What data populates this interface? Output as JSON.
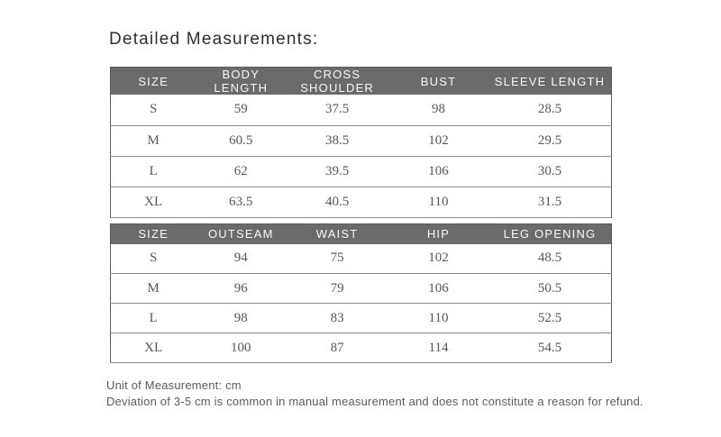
{
  "title": "Detailed Measurements:",
  "tables": [
    {
      "name": "top-garment-measurements",
      "columns": [
        "SIZE",
        "BODY LENGTH",
        "CROSS SHOULDER",
        "BUST",
        "SLEEVE LENGTH"
      ],
      "rows": [
        [
          "S",
          "59",
          "37.5",
          "98",
          "28.5"
        ],
        [
          "M",
          "60.5",
          "38.5",
          "102",
          "29.5"
        ],
        [
          "L",
          "62",
          "39.5",
          "106",
          "30.5"
        ],
        [
          "XL",
          "63.5",
          "40.5",
          "110",
          "31.5"
        ]
      ]
    },
    {
      "name": "bottom-garment-measurements",
      "columns": [
        "SIZE",
        "OUTSEAM",
        "WAIST",
        "HIP",
        "LEG OPENING"
      ],
      "rows": [
        [
          "S",
          "94",
          "75",
          "102",
          "48.5"
        ],
        [
          "M",
          "96",
          "79",
          "106",
          "50.5"
        ],
        [
          "L",
          "98",
          "83",
          "110",
          "52.5"
        ],
        [
          "XL",
          "100",
          "87",
          "114",
          "54.5"
        ]
      ]
    }
  ],
  "footnotes": [
    "Unit of Measurement: cm",
    "Deviation of 3-5 cm is common in manual measurement and does not constitute a reason for refund."
  ],
  "colors": {
    "page_bg": "#ffffff",
    "header_bg": "#6b6b6b",
    "header_text": "#f7f7f7",
    "cell_text": "#565656",
    "title_color": "#2e2e2e",
    "note_color": "#5d5d5d",
    "outer_border": "#5a5a5a",
    "inner_border": "#8c8c8c"
  }
}
